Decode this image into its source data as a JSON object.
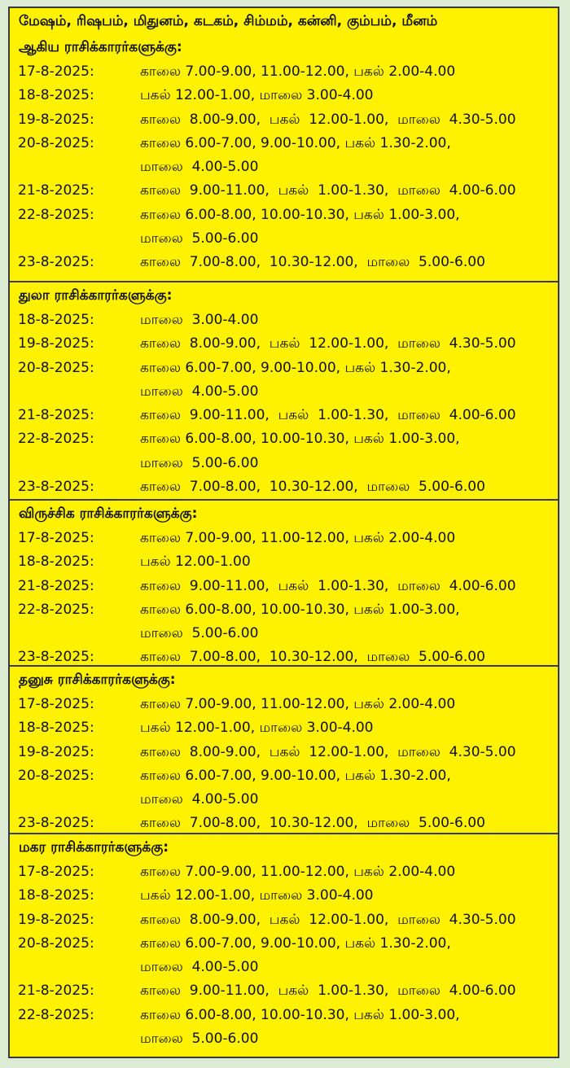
{
  "colors": {
    "background": "#dcebd3",
    "panel": "#fff200",
    "border": "#3a3a3a"
  },
  "sections": [
    {
      "header": [
        "மேஷம், ரிஷபம், மிதுனம், கடகம், சிம்மம், கன்னி, கும்பம், மீனம்",
        "ஆகிய ராசிக்காரர்களுக்கு:"
      ],
      "rows": [
        {
          "date": "17-8-2025:",
          "lines": [
            "காலை 7.00-9.00, 11.00-12.00, பகல் 2.00-4.00"
          ]
        },
        {
          "date": "18-8-2025:",
          "lines": [
            "பகல் 12.00-1.00, மாலை 3.00-4.00"
          ]
        },
        {
          "date": "19-8-2025:",
          "lines": [
            "காலை  8.00-9.00,  பகல்  12.00-1.00,  மாலை  4.30-5.00"
          ]
        },
        {
          "date": "20-8-2025:",
          "lines": [
            "காலை 6.00-7.00, 9.00-10.00, பகல் 1.30-2.00,",
            "மாலை  4.00-5.00"
          ]
        },
        {
          "date": "21-8-2025:",
          "lines": [
            "காலை  9.00-11.00,  பகல்  1.00-1.30,  மாலை  4.00-6.00"
          ]
        },
        {
          "date": "22-8-2025:",
          "lines": [
            "காலை 6.00-8.00, 10.00-10.30, பகல் 1.00-3.00,",
            "மாலை  5.00-6.00"
          ]
        },
        {
          "date": "23-8-2025:",
          "lines": [
            "காலை  7.00-8.00,  10.30-12.00,  மாலை  5.00-6.00"
          ]
        }
      ]
    },
    {
      "header": [
        "துலா ராசிக்காரர்களுக்கு:"
      ],
      "rows": [
        {
          "date": "18-8-2025:",
          "lines": [
            "மாலை  3.00-4.00"
          ]
        },
        {
          "date": "19-8-2025:",
          "lines": [
            "காலை  8.00-9.00,  பகல்  12.00-1.00,  மாலை  4.30-5.00"
          ]
        },
        {
          "date": "20-8-2025:",
          "lines": [
            "காலை 6.00-7.00, 9.00-10.00, பகல் 1.30-2.00,",
            "மாலை  4.00-5.00"
          ]
        },
        {
          "date": "21-8-2025:",
          "lines": [
            "காலை  9.00-11.00,  பகல்  1.00-1.30,  மாலை  4.00-6.00"
          ]
        },
        {
          "date": "22-8-2025:",
          "lines": [
            "காலை 6.00-8.00, 10.00-10.30, பகல் 1.00-3.00,",
            "மாலை  5.00-6.00"
          ]
        },
        {
          "date": "23-8-2025:",
          "lines": [
            "காலை  7.00-8.00,  10.30-12.00,  மாலை  5.00-6.00"
          ]
        }
      ]
    },
    {
      "header": [
        "விருச்சிக ராசிக்காரர்களுக்கு:"
      ],
      "rows": [
        {
          "date": "17-8-2025:",
          "lines": [
            "காலை 7.00-9.00, 11.00-12.00, பகல் 2.00-4.00"
          ]
        },
        {
          "date": "18-8-2025:",
          "lines": [
            "பகல் 12.00-1.00"
          ]
        },
        {
          "date": "21-8-2025:",
          "lines": [
            "காலை  9.00-11.00,  பகல்  1.00-1.30,  மாலை  4.00-6.00"
          ]
        },
        {
          "date": "22-8-2025:",
          "lines": [
            "காலை 6.00-8.00, 10.00-10.30, பகல் 1.00-3.00,",
            "மாலை  5.00-6.00"
          ]
        },
        {
          "date": "23-8-2025:",
          "lines": [
            "காலை  7.00-8.00,  10.30-12.00,  மாலை  5.00-6.00"
          ]
        }
      ]
    },
    {
      "header": [
        "தனுசு ராசிக்காரர்களுக்கு:"
      ],
      "rows": [
        {
          "date": "17-8-2025:",
          "lines": [
            "காலை 7.00-9.00, 11.00-12.00, பகல் 2.00-4.00"
          ]
        },
        {
          "date": "18-8-2025:",
          "lines": [
            "பகல் 12.00-1.00, மாலை 3.00-4.00"
          ]
        },
        {
          "date": "19-8-2025:",
          "lines": [
            "காலை  8.00-9.00,  பகல்  12.00-1.00,  மாலை  4.30-5.00"
          ]
        },
        {
          "date": "20-8-2025:",
          "lines": [
            "காலை 6.00-7.00, 9.00-10.00, பகல் 1.30-2.00,",
            "மாலை  4.00-5.00"
          ]
        },
        {
          "date": "23-8-2025:",
          "lines": [
            "காலை  7.00-8.00,  10.30-12.00,  மாலை  5.00-6.00"
          ]
        }
      ]
    },
    {
      "header": [
        "மகர ராசிக்காரர்களுக்கு:"
      ],
      "rows": [
        {
          "date": "17-8-2025:",
          "lines": [
            "காலை 7.00-9.00, 11.00-12.00, பகல் 2.00-4.00"
          ]
        },
        {
          "date": "18-8-2025:",
          "lines": [
            "பகல் 12.00-1.00, மாலை 3.00-4.00"
          ]
        },
        {
          "date": "19-8-2025:",
          "lines": [
            "காலை  8.00-9.00,  பகல்  12.00-1.00,  மாலை  4.30-5.00"
          ]
        },
        {
          "date": "20-8-2025:",
          "lines": [
            "காலை 6.00-7.00, 9.00-10.00, பகல் 1.30-2.00,",
            "மாலை  4.00-5.00"
          ]
        },
        {
          "date": "21-8-2025:",
          "lines": [
            "காலை  9.00-11.00,  பகல்  1.00-1.30,  மாலை  4.00-6.00"
          ]
        },
        {
          "date": "22-8-2025:",
          "lines": [
            "காலை 6.00-8.00, 10.00-10.30, பகல் 1.00-3.00,",
            "மாலை  5.00-6.00"
          ]
        }
      ]
    }
  ]
}
